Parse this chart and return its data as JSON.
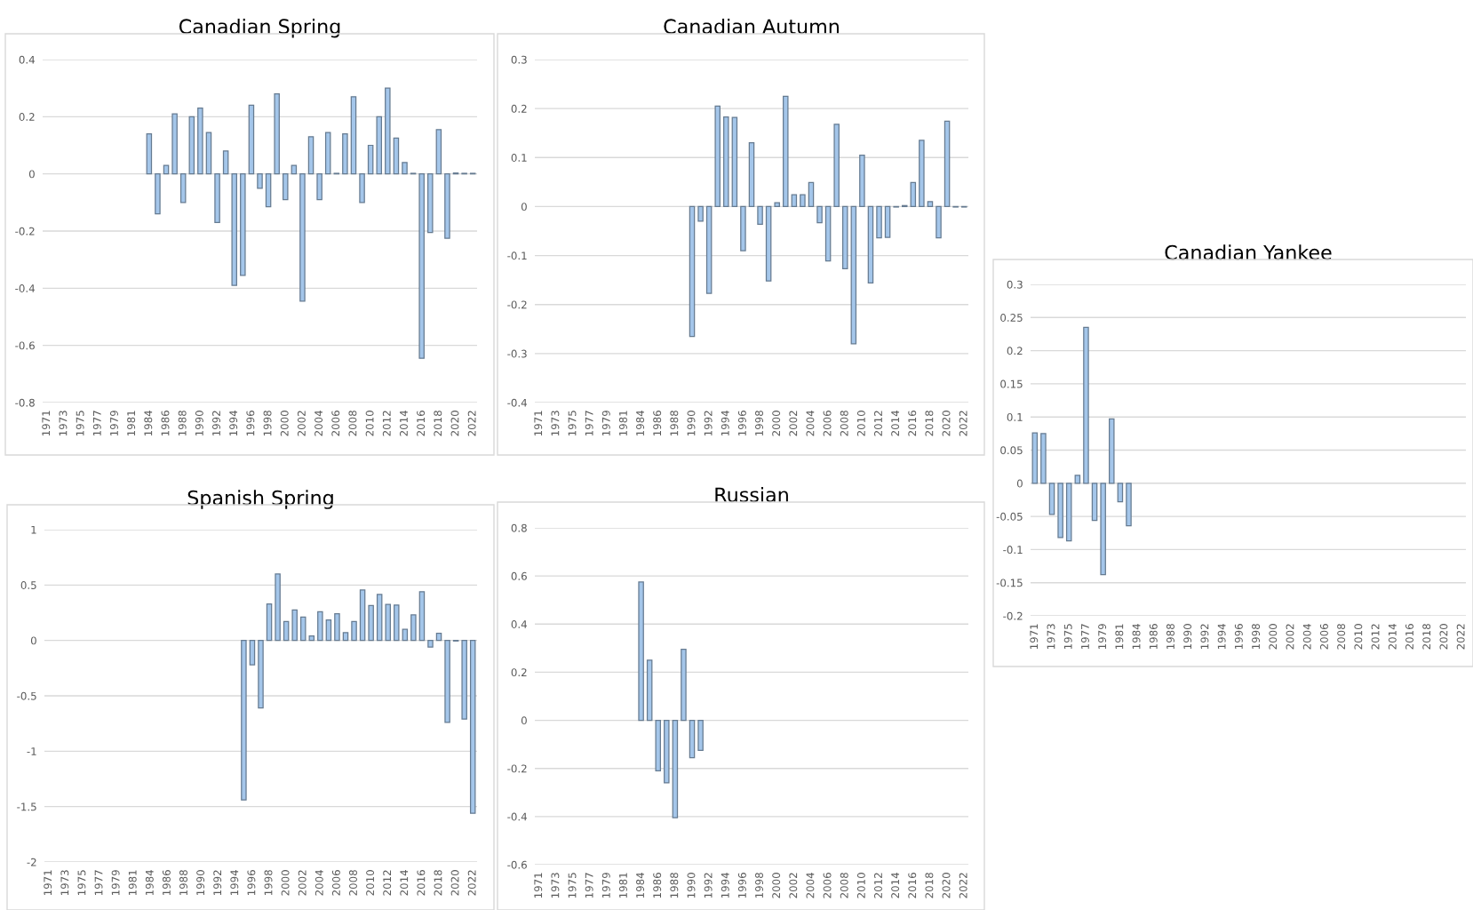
{
  "chart_data": [
    {
      "type": "bar",
      "title": "Canadian Spring",
      "color": "#a4c6ea",
      "grid": "y",
      "ylim": [
        -0.8,
        0.4
      ],
      "yticks": [
        -0.8,
        -0.6,
        -0.4,
        -0.2,
        0,
        0.2,
        0.4
      ],
      "categories": [
        "1971",
        null,
        "1973",
        null,
        "1975",
        null,
        "1977",
        null,
        "1979",
        null,
        "1981",
        null,
        "1984",
        null,
        "1986",
        null,
        "1988",
        null,
        "1990",
        null,
        "1992",
        null,
        "1994",
        null,
        "1996",
        null,
        "1998",
        null,
        "2000",
        null,
        "2002",
        null,
        "2004",
        null,
        "2006",
        null,
        "2008",
        null,
        "2010",
        null,
        "2012",
        null,
        "2014",
        null,
        "2016",
        null,
        "2018",
        null,
        "2020",
        null,
        "2022"
      ],
      "values": [
        null,
        null,
        null,
        null,
        null,
        null,
        null,
        null,
        null,
        null,
        null,
        null,
        0.14,
        -0.14,
        0.03,
        0.21,
        -0.1,
        0.2,
        0.23,
        0.145,
        -0.17,
        0.08,
        -0.39,
        -0.355,
        0.24,
        -0.05,
        -0.115,
        0.28,
        -0.09,
        0.03,
        -0.445,
        0.13,
        -0.09,
        0.145,
        0.002,
        0.14,
        0.27,
        -0.1,
        0.1,
        0.2,
        0.3,
        0.125,
        0.04,
        0.002,
        -0.645,
        -0.205,
        0.155,
        -0.225,
        0.003,
        0.002,
        0.002
      ]
    },
    {
      "type": "bar",
      "title": "Canadian Autumn",
      "color": "#a4c6ea",
      "grid": "y",
      "ylim": [
        -0.4,
        0.3
      ],
      "yticks": [
        -0.4,
        -0.3,
        -0.2,
        -0.1,
        0,
        0.1,
        0.2,
        0.3
      ],
      "categories": [
        "1971",
        null,
        "1973",
        null,
        "1975",
        null,
        "1977",
        null,
        "1979",
        null,
        "1981",
        null,
        "1984",
        null,
        "1986",
        null,
        "1988",
        null,
        "1990",
        null,
        "1992",
        null,
        "1994",
        null,
        "1996",
        null,
        "1998",
        null,
        "2000",
        null,
        "2002",
        null,
        "2004",
        null,
        "2006",
        null,
        "2008",
        null,
        "2010",
        null,
        "2012",
        null,
        "2014",
        null,
        "2016",
        null,
        "2018",
        null,
        "2020",
        null,
        "2022"
      ],
      "values": [
        null,
        null,
        null,
        null,
        null,
        null,
        null,
        null,
        null,
        null,
        null,
        null,
        null,
        null,
        null,
        null,
        null,
        null,
        -0.265,
        -0.03,
        -0.177,
        0.205,
        0.183,
        0.182,
        -0.09,
        0.13,
        -0.036,
        -0.152,
        0.008,
        0.225,
        0.024,
        0.024,
        0.049,
        -0.033,
        -0.111,
        0.168,
        -0.127,
        -0.28,
        0.105,
        -0.156,
        -0.064,
        -0.063,
        -0.001,
        0.002,
        0.049,
        0.135,
        0.01,
        -0.064,
        0.174,
        -0.001,
        -0.001
      ]
    },
    {
      "type": "bar",
      "title": "Canadian Yankee",
      "color": "#a4c6ea",
      "grid": "y",
      "ylim": [
        -0.2,
        0.3
      ],
      "yticks": [
        -0.2,
        -0.15,
        -0.1,
        -0.05,
        0,
        0.05,
        0.1,
        0.15,
        0.2,
        0.25,
        0.3
      ],
      "categories": [
        "1971",
        null,
        "1973",
        null,
        "1975",
        null,
        "1977",
        null,
        "1979",
        null,
        "1981",
        null,
        "1984",
        null,
        "1986",
        null,
        "1988",
        null,
        "1990",
        null,
        "1992",
        null,
        "1994",
        null,
        "1996",
        null,
        "1998",
        null,
        "2000",
        null,
        "2002",
        null,
        "2004",
        null,
        "2006",
        null,
        "2008",
        null,
        "2010",
        null,
        "2012",
        null,
        "2014",
        null,
        "2016",
        null,
        "2018",
        null,
        "2020",
        null,
        "2022"
      ],
      "values": [
        0.076,
        0.075,
        -0.047,
        -0.082,
        -0.087,
        0.012,
        0.235,
        -0.056,
        -0.138,
        0.097,
        -0.028,
        -0.064,
        null,
        null,
        null,
        null,
        null,
        null,
        null,
        null,
        null,
        null,
        null,
        null,
        null,
        null,
        null,
        null,
        null,
        null,
        null,
        null,
        null,
        null,
        null,
        null,
        null,
        null,
        null,
        null,
        null,
        null,
        null,
        null,
        null,
        null,
        null,
        null,
        null,
        null,
        null
      ]
    },
    {
      "type": "bar",
      "title": "Spanish Spring",
      "color": "#a4c6ea",
      "grid": "y",
      "ylim": [
        -2,
        1
      ],
      "yticks": [
        -2,
        -1.5,
        -1,
        -0.5,
        0,
        0.5,
        1
      ],
      "categories": [
        "1971",
        null,
        "1973",
        null,
        "1975",
        null,
        "1977",
        null,
        "1979",
        null,
        "1981",
        null,
        "1984",
        null,
        "1986",
        null,
        "1988",
        null,
        "1990",
        null,
        "1992",
        null,
        "1994",
        null,
        "1996",
        null,
        "1998",
        null,
        "2000",
        null,
        "2002",
        null,
        "2004",
        null,
        "2006",
        null,
        "2008",
        null,
        "2010",
        null,
        "2012",
        null,
        "2014",
        null,
        "2016",
        null,
        "2018",
        null,
        "2020",
        null,
        "2022"
      ],
      "values": [
        null,
        null,
        null,
        null,
        null,
        null,
        null,
        null,
        null,
        null,
        null,
        null,
        null,
        null,
        null,
        null,
        null,
        null,
        null,
        null,
        null,
        null,
        null,
        -1.44,
        -0.22,
        -0.61,
        0.33,
        0.6,
        0.17,
        0.275,
        0.21,
        0.04,
        0.26,
        0.185,
        0.24,
        0.07,
        0.17,
        0.455,
        0.315,
        0.415,
        0.325,
        0.32,
        0.1,
        0.23,
        0.44,
        -0.06,
        0.065,
        -0.74,
        -0.005,
        -0.71,
        -1.56
      ]
    },
    {
      "type": "bar",
      "title": "Russian",
      "color": "#a4c6ea",
      "grid": "y",
      "ylim": [
        -0.6,
        0.8
      ],
      "yticks": [
        -0.6,
        -0.4,
        -0.2,
        0,
        0.2,
        0.4,
        0.6,
        0.8
      ],
      "categories": [
        "1971",
        null,
        "1973",
        null,
        "1975",
        null,
        "1977",
        null,
        "1979",
        null,
        "1981",
        null,
        "1984",
        null,
        "1986",
        null,
        "1988",
        null,
        "1990",
        null,
        "1992",
        null,
        "1994",
        null,
        "1996",
        null,
        "1998",
        null,
        "2000",
        null,
        "2002",
        null,
        "2004",
        null,
        "2006",
        null,
        "2008",
        null,
        "2010",
        null,
        "2012",
        null,
        "2014",
        null,
        "2016",
        null,
        "2018",
        null,
        "2020",
        null,
        "2022"
      ],
      "values": [
        null,
        null,
        null,
        null,
        null,
        null,
        null,
        null,
        null,
        null,
        null,
        null,
        0.575,
        0.25,
        -0.21,
        -0.26,
        -0.405,
        0.295,
        -0.155,
        -0.125,
        null,
        null,
        null,
        null,
        null,
        null,
        null,
        null,
        null,
        null,
        null,
        null,
        null,
        null,
        null,
        null,
        null,
        null,
        null,
        null,
        null,
        null,
        null,
        null,
        null,
        null,
        null,
        null,
        null,
        null,
        null
      ]
    }
  ]
}
